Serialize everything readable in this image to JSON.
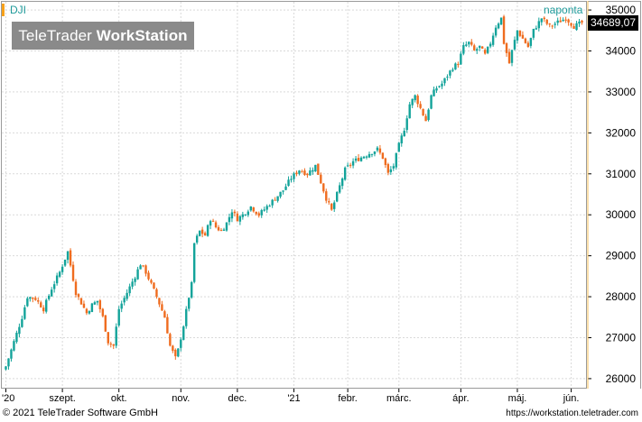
{
  "header": {
    "symbol": "DJI",
    "period": "naponta",
    "brand_light": "TeleTrader ",
    "brand_bold": "WorkStation"
  },
  "last_price": "34689,07",
  "footer": {
    "copyright": "© 2021 TeleTrader Software GmbH",
    "url": "https://workstation.teletrader.com"
  },
  "colors": {
    "up": "#13a39a",
    "down": "#ef6c1f",
    "grid": "#d9d9d9",
    "accent": "#f7a11a"
  },
  "chart_data": {
    "type": "candlestick",
    "title": "DJI",
    "period": "naponta",
    "xlabel": "",
    "ylabel": "",
    "ylim": [
      25800,
      35200
    ],
    "yticks": [
      26000,
      27000,
      28000,
      29000,
      30000,
      31000,
      32000,
      33000,
      34000,
      35000
    ],
    "ytick_labels": [
      "26000",
      "27000",
      "28000",
      "29000",
      "30000",
      "31000",
      "32000",
      "33000",
      "34000",
      "35000"
    ],
    "xticks": [
      {
        "label": "'20",
        "index": 0
      },
      {
        "label": "szept.",
        "index": 21
      },
      {
        "label": "okt.",
        "index": 42
      },
      {
        "label": "nov.",
        "index": 65
      },
      {
        "label": "dec.",
        "index": 86
      },
      {
        "label": "'21",
        "index": 107
      },
      {
        "label": "febr.",
        "index": 127
      },
      {
        "label": "márc.",
        "index": 146
      },
      {
        "label": "ápr.",
        "index": 169
      },
      {
        "label": "máj.",
        "index": 190
      },
      {
        "label": "jún.",
        "index": 210
      }
    ],
    "close_path": [
      [
        0,
        26300
      ],
      [
        4,
        27100
      ],
      [
        6,
        27500
      ],
      [
        8,
        28000
      ],
      [
        11,
        27950
      ],
      [
        14,
        27700
      ],
      [
        17,
        28200
      ],
      [
        20,
        28600
      ],
      [
        23,
        29100
      ],
      [
        26,
        28100
      ],
      [
        30,
        27600
      ],
      [
        32,
        27800
      ],
      [
        34,
        27900
      ],
      [
        36,
        27500
      ],
      [
        38,
        26900
      ],
      [
        40,
        26800
      ],
      [
        42,
        27700
      ],
      [
        45,
        28100
      ],
      [
        48,
        28500
      ],
      [
        50,
        28800
      ],
      [
        52,
        28600
      ],
      [
        54,
        28300
      ],
      [
        56,
        28000
      ],
      [
        59,
        27500
      ],
      [
        61,
        26800
      ],
      [
        63,
        26500
      ],
      [
        64,
        26700
      ],
      [
        66,
        27300
      ],
      [
        68,
        28000
      ],
      [
        69,
        28300
      ],
      [
        70,
        29300
      ],
      [
        72,
        29600
      ],
      [
        74,
        29500
      ],
      [
        76,
        29900
      ],
      [
        78,
        29700
      ],
      [
        80,
        29600
      ],
      [
        82,
        29800
      ],
      [
        84,
        30100
      ],
      [
        86,
        29900
      ],
      [
        88,
        30000
      ],
      [
        91,
        30200
      ],
      [
        94,
        30000
      ],
      [
        97,
        30200
      ],
      [
        100,
        30400
      ],
      [
        103,
        30600
      ],
      [
        106,
        30900
      ],
      [
        109,
        31100
      ],
      [
        112,
        31000
      ],
      [
        115,
        31200
      ],
      [
        117,
        30800
      ],
      [
        119,
        30400
      ],
      [
        121,
        30100
      ],
      [
        123,
        30500
      ],
      [
        126,
        31100
      ],
      [
        129,
        31300
      ],
      [
        132,
        31400
      ],
      [
        135,
        31500
      ],
      [
        138,
        31600
      ],
      [
        140,
        31400
      ],
      [
        142,
        31000
      ],
      [
        144,
        31200
      ],
      [
        146,
        31700
      ],
      [
        148,
        32100
      ],
      [
        150,
        32700
      ],
      [
        152,
        32900
      ],
      [
        154,
        32600
      ],
      [
        156,
        32300
      ],
      [
        158,
        32900
      ],
      [
        160,
        33100
      ],
      [
        162,
        33200
      ],
      [
        164,
        33400
      ],
      [
        166,
        33600
      ],
      [
        168,
        33700
      ],
      [
        170,
        34100
      ],
      [
        172,
        34200
      ],
      [
        174,
        34000
      ],
      [
        176,
        34100
      ],
      [
        178,
        33900
      ],
      [
        180,
        34200
      ],
      [
        182,
        34600
      ],
      [
        184,
        34800
      ],
      [
        185,
        34200
      ],
      [
        187,
        33700
      ],
      [
        188,
        34000
      ],
      [
        190,
        34500
      ],
      [
        192,
        34300
      ],
      [
        194,
        34100
      ],
      [
        196,
        34500
      ],
      [
        199,
        34800
      ],
      [
        202,
        34600
      ],
      [
        205,
        34700
      ],
      [
        208,
        34800
      ],
      [
        211,
        34600
      ],
      [
        214,
        34689
      ]
    ],
    "last": 34689.07
  }
}
